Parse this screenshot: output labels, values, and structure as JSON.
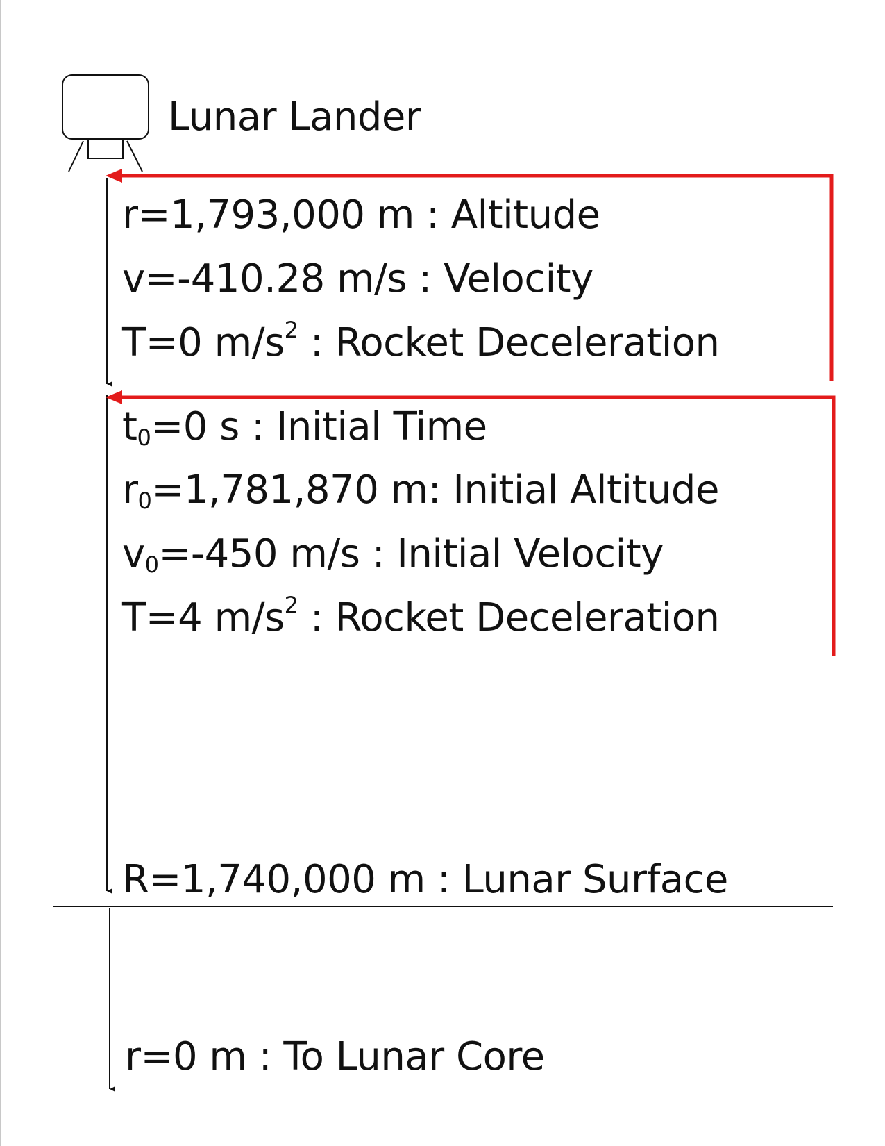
{
  "title": "Lunar Lander",
  "colors": {
    "ink": "#111111",
    "feedback_arrow": "#e31b1b"
  },
  "block1": {
    "altitude": {
      "symbol": "r",
      "value": "=1,793,000 m",
      "desc": " : Altitude"
    },
    "velocity": {
      "symbol": "v",
      "value": "=-410.28 m/s",
      "desc": " : Velocity"
    },
    "deceleration": {
      "symbol": "T",
      "value": "=0 m/s",
      "exp": "2",
      "desc": " : Rocket Deceleration"
    }
  },
  "block2": {
    "time": {
      "symbol": "t",
      "sub": "0",
      "value": "=0 s",
      "desc": " : Initial Time"
    },
    "altitude": {
      "symbol": "r",
      "sub": "0",
      "value": "=1,781,870 m",
      "desc": ": Initial Altitude"
    },
    "velocity": {
      "symbol": "v",
      "sub": "0",
      "value": "=-450 m/s",
      "desc": " : Initial Velocity"
    },
    "deceleration": {
      "symbol": "T",
      "value": "=4 m/s",
      "exp": "2",
      "desc": " : Rocket Deceleration"
    }
  },
  "surface": {
    "symbol": "R",
    "value": "=1,740,000 m",
    "desc": " : Lunar Surface"
  },
  "core": {
    "symbol": "r",
    "value": "=0 m",
    "desc": " : To Lunar Core"
  }
}
